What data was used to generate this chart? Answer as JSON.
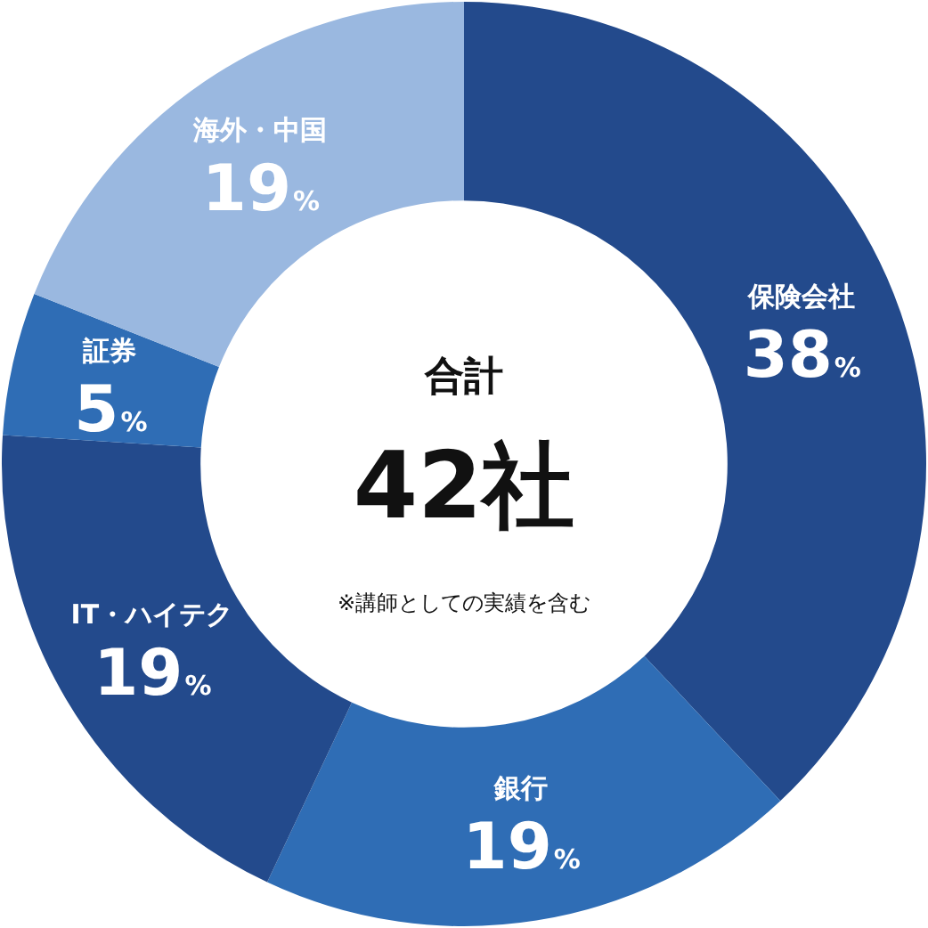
{
  "chart_data": {
    "type": "donut",
    "categories": [
      "保険会社",
      "銀行",
      "IT・ハイテク",
      "証券",
      "海外・中国"
    ],
    "values": [
      38,
      19,
      19,
      5,
      19
    ],
    "value_labels": [
      "38%",
      "19%",
      "19%",
      "5%",
      "19%"
    ],
    "colors": [
      "#234a8c",
      "#2f6db5",
      "#234a8c",
      "#2f6db5",
      "#9ab8e0"
    ],
    "annotations": [
      "合計",
      "42社",
      "※講師としての実績を含む"
    ],
    "legend": false
  }
}
